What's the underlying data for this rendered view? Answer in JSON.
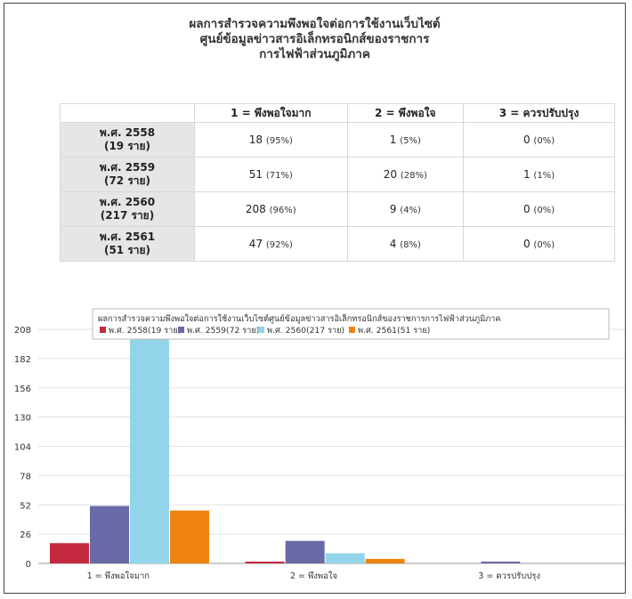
{
  "title_lines": [
    "ผลการสำรวจความพึงพอใจต่อการใช้งานเว็บไซต์",
    "ศูนย์ข้อมูลข่าวสารอิเล็กทรอนิกส์ของราชการ",
    "การไฟฟ้าส่วนภูมิภาค"
  ],
  "table": {
    "headers": [
      "1 = พึงพอใจมาก",
      "2 = พึงพอใจ",
      "3 = ควรปรับปรุง"
    ],
    "rows": [
      {
        "year": "พ.ศ. 2558",
        "count": "(19 ราย)",
        "cells": [
          {
            "n": "18",
            "p": "(95%)"
          },
          {
            "n": "1",
            "p": "(5%)"
          },
          {
            "n": "0",
            "p": "(0%)"
          }
        ]
      },
      {
        "year": "พ.ศ. 2559",
        "count": "(72 ราย)",
        "cells": [
          {
            "n": "51",
            "p": "(71%)"
          },
          {
            "n": "20",
            "p": "(28%)"
          },
          {
            "n": "1",
            "p": "(1%)"
          }
        ]
      },
      {
        "year": "พ.ศ. 2560",
        "count": "(217 ราย)",
        "cells": [
          {
            "n": "208",
            "p": "(96%)"
          },
          {
            "n": "9",
            "p": "(4%)"
          },
          {
            "n": "0",
            "p": "(0%)"
          }
        ]
      },
      {
        "year": "พ.ศ. 2561",
        "count": "(51 ราย)",
        "cells": [
          {
            "n": "47",
            "p": "(92%)"
          },
          {
            "n": "4",
            "p": "(8%)"
          },
          {
            "n": "0",
            "p": "(0%)"
          }
        ]
      }
    ]
  },
  "chart_data": {
    "type": "bar",
    "title": "ผลการสำรวจความพึงพอใจต่อการใช้งานเว็บไซต์ศูนย์ข้อมูลข่าวสารอิเล็กทรอนิกส์ของราชการการไฟฟ้าส่วนภูมิภาค",
    "categories": [
      "1 = พึงพอใจมาก",
      "2 = พึงพอใจ",
      "3 = ควรปรับปรุง"
    ],
    "series": [
      {
        "name": "พ.ศ. 2558(19 ราย)",
        "color": "#c42a3f",
        "values": [
          18,
          1,
          0
        ]
      },
      {
        "name": "พ.ศ. 2559(72 ราย)",
        "color": "#6b6aa8",
        "values": [
          51,
          20,
          1
        ]
      },
      {
        "name": "พ.ศ. 2560(217 ราย)",
        "color": "#92d5ea",
        "values": [
          208,
          9,
          0
        ]
      },
      {
        "name": "พ.ศ. 2561(51 ราย)",
        "color": "#ee8310",
        "values": [
          47,
          4,
          0
        ]
      }
    ],
    "yticks": [
      0,
      26,
      52,
      78,
      104,
      130,
      156,
      182,
      208
    ],
    "ylim": [
      0,
      208
    ],
    "grid": true,
    "legend": "top"
  }
}
